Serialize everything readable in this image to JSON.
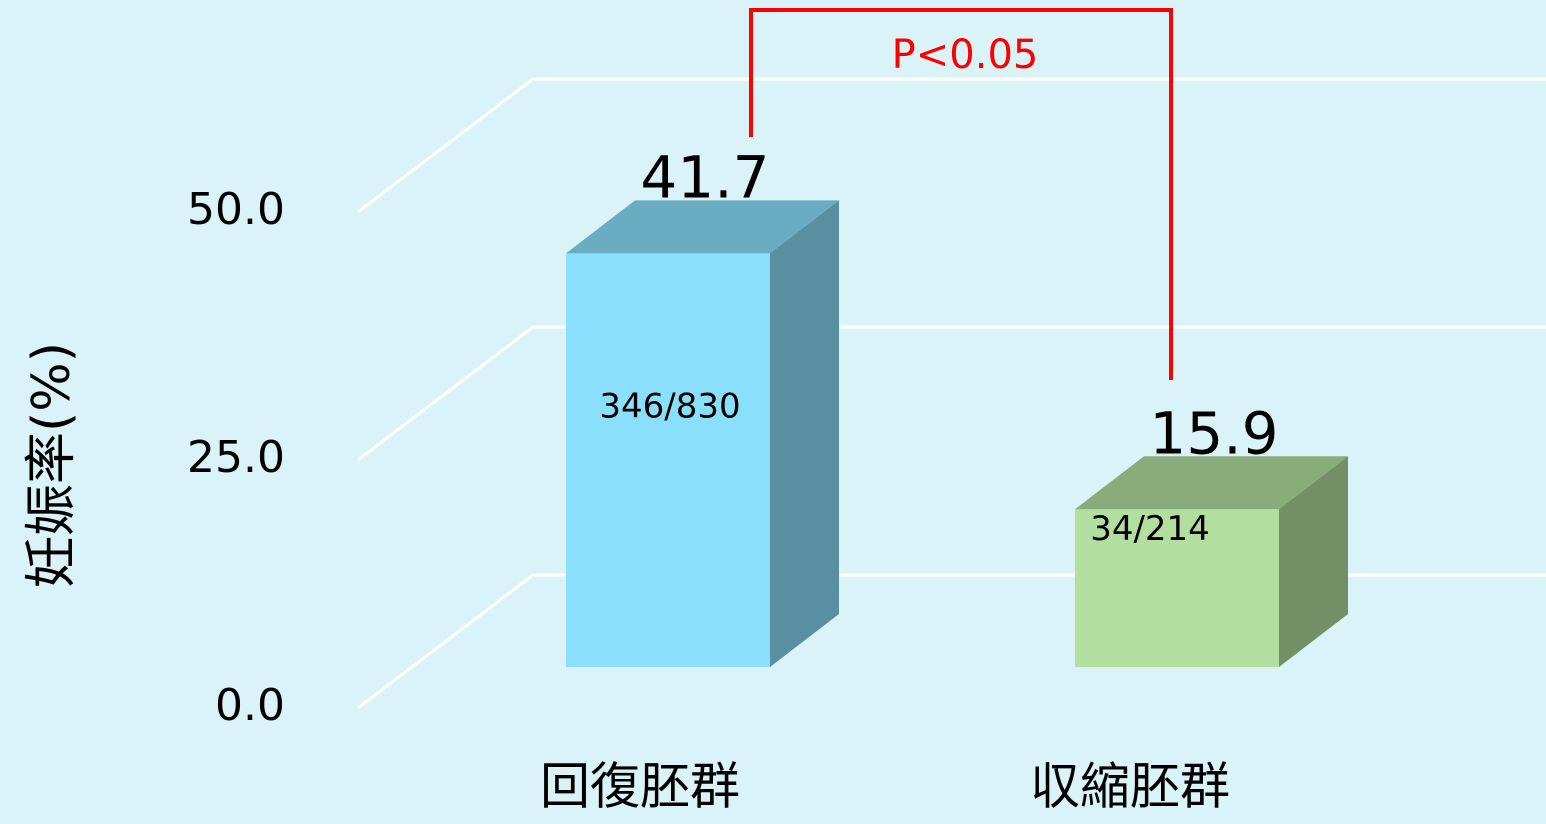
{
  "chart_data": {
    "type": "bar3d",
    "y_axis_label": "妊娠率(%)",
    "categories": [
      "回復胚群",
      "収縮胚群"
    ],
    "values": [
      41.7,
      15.9
    ],
    "bar_annotations": [
      "346/830",
      "34/214"
    ],
    "colors": [
      "#8adffc",
      "#b2dfa0"
    ],
    "ylim": [
      0,
      50
    ],
    "yticks": [
      {
        "value": 0,
        "label": "0.0"
      },
      {
        "value": 25,
        "label": "25.0"
      },
      {
        "value": 50,
        "label": "50.0"
      }
    ],
    "grid": true,
    "annotation": "P<0.05"
  }
}
